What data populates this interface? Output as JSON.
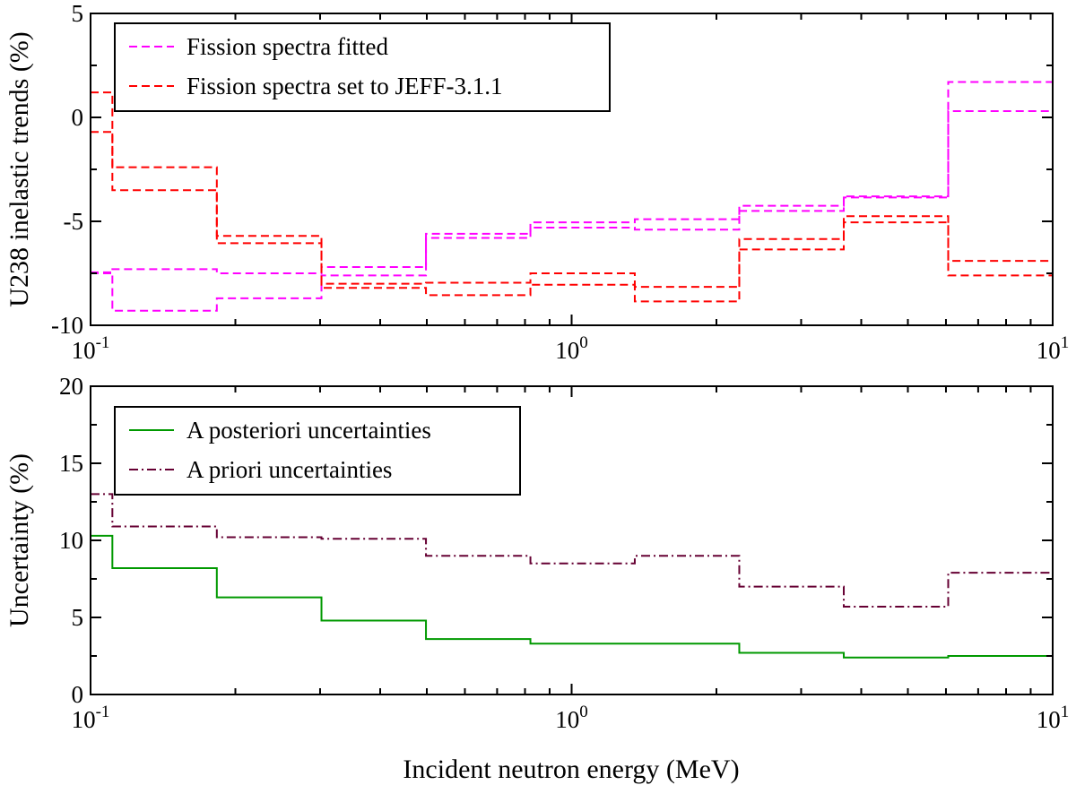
{
  "figure": {
    "xlabel": "Incident neutron energy (MeV)"
  },
  "colors": {
    "fitted": "#ff00ff",
    "jeff": "#ff0000",
    "posteriori": "#009900",
    "priori": "#660033"
  },
  "chart_data": [
    {
      "type": "line",
      "id": "top",
      "xscale": "log",
      "xlim": [
        0.1,
        10
      ],
      "ylim": [
        -10,
        5
      ],
      "yticks": [
        -10,
        -5,
        0,
        5
      ],
      "ytick_labels": [
        "-10",
        "-5",
        "0",
        "5"
      ],
      "xtick_labels": [
        {
          "value": 0.1,
          "base": "10",
          "exp": "-1"
        },
        {
          "value": 1,
          "base": "10",
          "exp": "0"
        },
        {
          "value": 10,
          "base": "10",
          "exp": "1"
        }
      ],
      "ylabel": "U238 inelastic trends (%)",
      "legend_position": "top-left",
      "bin_edges": [
        0.1,
        0.111,
        0.183,
        0.302,
        0.498,
        0.821,
        1.353,
        2.231,
        3.679,
        6.065,
        10
      ],
      "series": [
        {
          "name": "Fission spectra fitted",
          "legend": true,
          "color_key": "fitted",
          "dash": "dashed",
          "values": [
            -7.5,
            -7.3,
            -7.5,
            -7.2,
            -5.6,
            -5.05,
            -4.9,
            -4.25,
            -3.8,
            1.7
          ]
        },
        {
          "name": "Fission spectra fitted (lower)",
          "legend": false,
          "color_key": "fitted",
          "dash": "dashed",
          "values": [
            -7.45,
            -9.3,
            -8.7,
            -7.6,
            -5.8,
            -5.3,
            -5.4,
            -4.5,
            -3.85,
            0.3
          ]
        },
        {
          "name": "Fission spectra set to JEFF-3.1.1",
          "legend": true,
          "color_key": "jeff",
          "dash": "dashed",
          "values": [
            1.2,
            -2.4,
            -5.7,
            -8.0,
            -7.95,
            -7.5,
            -8.15,
            -5.85,
            -4.75,
            -6.9
          ]
        },
        {
          "name": "Fission spectra set to JEFF-3.1.1 (lower)",
          "legend": false,
          "color_key": "jeff",
          "dash": "dashed",
          "values": [
            -0.7,
            -3.5,
            -6.05,
            -8.2,
            -8.55,
            -8.05,
            -8.85,
            -6.35,
            -5.05,
            -7.6
          ]
        }
      ]
    },
    {
      "type": "line",
      "id": "bottom",
      "xscale": "log",
      "xlim": [
        0.1,
        10
      ],
      "ylim": [
        0,
        20
      ],
      "yticks": [
        0,
        5,
        10,
        15,
        20
      ],
      "ytick_labels": [
        "0",
        "5",
        "10",
        "15",
        "20"
      ],
      "xtick_labels": [
        {
          "value": 0.1,
          "base": "10",
          "exp": "-1"
        },
        {
          "value": 1,
          "base": "10",
          "exp": "0"
        },
        {
          "value": 10,
          "base": "10",
          "exp": "1"
        }
      ],
      "ylabel": "Uncertainty (%)",
      "legend_position": "top-left",
      "bin_edges": [
        0.1,
        0.111,
        0.183,
        0.302,
        0.498,
        0.821,
        1.353,
        2.231,
        3.679,
        6.065,
        10
      ],
      "series": [
        {
          "name": "A posteriori uncertainties",
          "legend": true,
          "color_key": "posteriori",
          "dash": "solid",
          "values": [
            10.3,
            8.2,
            6.3,
            4.8,
            3.6,
            3.3,
            3.3,
            2.7,
            2.4,
            2.5
          ]
        },
        {
          "name": "A priori uncertainties",
          "legend": true,
          "color_key": "priori",
          "dash": "dashdot",
          "values": [
            13.0,
            10.9,
            10.2,
            10.1,
            9.0,
            8.5,
            9.0,
            7.0,
            5.7,
            7.9
          ]
        }
      ]
    }
  ]
}
